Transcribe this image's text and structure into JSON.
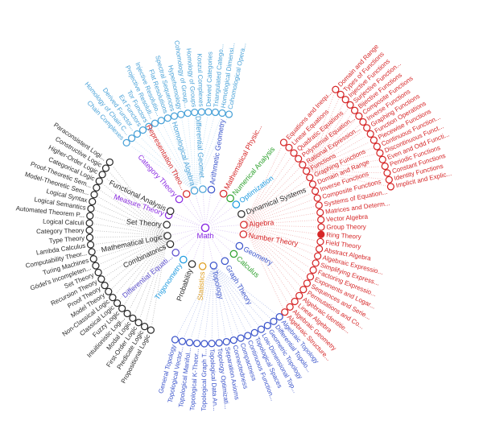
{
  "chart_data": {
    "type": "radial_tree",
    "center": {
      "label": "Math",
      "color": "purple"
    },
    "palette": {
      "purple": "#8a2be2",
      "lavender": "#d8c3f2",
      "red": "#d62728",
      "redLight": "#f2b7b7",
      "black": "#2b2b2b",
      "gray": "#bdbdbd",
      "green": "#2ca02c",
      "orange": "#df9e1f",
      "royal": "#3c55cb",
      "royalLight": "#bac6ec",
      "azure": "#1e9be0",
      "slate": "#5b4fce",
      "lightblue": "#4aa2d8",
      "lightblueLight": "#c4e1f5"
    },
    "radii": {
      "level1": 48,
      "level2": 144,
      "level3": 236
    },
    "branches": [
      {
        "label": "Algebra",
        "color": "red",
        "angle": -4.5,
        "children": {
          "edge": "redLight",
          "color": "red",
          "arc": [
            -47.4,
            46.7
          ],
          "items": [
            "Equations and Inequ...",
            "Linear Equations",
            "Quadratic Equations",
            "Polynomial Equation...",
            "Rational Expression...",
            {
              "label": "Functions",
              "children": {
                "edge": "redLight",
                "color": "red",
                "arc": [
                  -46.7,
                  -12.5
                ],
                "items": [
                  "Domain and Range",
                  "Types of Functions",
                  "Injective Functions",
                  "Surjective Function...",
                  "Bijective Functions",
                  "Composite Functions",
                  "Inverse Functions",
                  "Graphing Functions",
                  "Function Operations",
                  "Piecewise Functions",
                  "Continuous Function...",
                  "Discontinuous Funct...",
                  "Even and Odd Functi...",
                  "Periodic Functions",
                  "Constant Functions",
                  "Identity Functions",
                  "Implicit and Explic..."
                ]
              }
            },
            "Graphing Functions",
            "Domain and Range",
            "Inverse Functions",
            "Composite Functions",
            "Systems of Equation...",
            "Matrices and Determ...",
            "Vector Algebra",
            "Group Theory",
            {
              "label": "Ring Theory",
              "filled": true
            },
            "Field Theory",
            "Abstract Algebra",
            "Algebraic Expressio...",
            "Simplifying Express...",
            "Factoring Expressio...",
            "Exponents and Logar...",
            "Sequences and Serie...",
            "Permutations and Co...",
            "Algebraic Identitie...",
            "Linear Algebra",
            "Algebraic Geometry",
            "Algebraic Structure..."
          ]
        }
      },
      {
        "label": "Number Theory",
        "color": "red",
        "angle": 9.7
      },
      {
        "label": "Geometry",
        "color": "royal",
        "angle": 28
      },
      {
        "label": "Calculus",
        "color": "green",
        "angle": 42.5
      },
      {
        "label": "Graph Theory",
        "color": "royal",
        "angle": 59.5
      },
      {
        "label": "Topology",
        "color": "royal",
        "angle": 77.5,
        "children": {
          "edge": "royalLight",
          "color": "royal",
          "arc": [
            50.2,
            105.1
          ],
          "items": [
            "Algebraic Topology",
            "Differential Topolo...",
            "Geometric Topology",
            "Low-Dimensional Top...",
            "Topological Spaces",
            "Continuous Function...",
            "Compactness",
            "Connectedness",
            "Separation Axioms",
            "Topology Optimizati...",
            "Topological Data An...",
            "Topological Graph T...",
            "Topological K-Theor...",
            "Topological Manifol...",
            "Topological Vector...",
            "General Topology"
          ]
        }
      },
      {
        "label": "Statistics",
        "color": "orange",
        "angle": 94
      },
      {
        "label": "Probability",
        "color": "black",
        "angle": 110
      },
      {
        "label": "Trigonometry",
        "color": "azure",
        "angle": 124.5
      },
      {
        "label": "Differential Equati...",
        "color": "slate",
        "angle": 140
      },
      {
        "label": "Combinatorics",
        "color": "black",
        "angle": 155
      },
      {
        "label": "Mathematical Logic",
        "color": "black",
        "angle": 168,
        "children": {
          "edge": "gray",
          "color": "black",
          "arc": [
            214.5,
            118
          ],
          "items": [
            "Paraconsistent Logi...",
            "Constructive Logic",
            "Higher-Order Logic",
            "Categorical Logic",
            "Proof-Theoretic Sem...",
            "Model-Theoretic Sem...",
            "Logical Syntax",
            "Logical Semantics",
            "Automated Theorem P...",
            "Logical Calculi",
            "Category Theory",
            "Type Theory",
            "Lambda Calculus",
            "Computability Theor...",
            "Turing Machines",
            "Gödel's Incompleten...",
            "Set Theory",
            "Recursion Theory",
            "Proof Theory",
            "Model Theory",
            "Non-Classical Logic",
            "Classical Logic",
            "Fuzzy Logic",
            "Intuitionistic Logi...",
            "Modal Logic",
            "First-Order Logic",
            "Predicate Logic",
            "Propositional Logic"
          ]
        }
      },
      {
        "label": "Set Theory",
        "color": "black",
        "angle": 184.5
      },
      {
        "label": "Measure Theory",
        "color": "purple",
        "angle": 199
      },
      {
        "label": "Functional Analysis",
        "color": "black",
        "angle": 205.5
      },
      {
        "label": "Category Theory",
        "color": "purple",
        "angle": 227.5
      },
      {
        "label": "Representation Theo...",
        "color": "red",
        "angle": 241
      },
      {
        "label": "Homological Algebra",
        "color": "lightblue",
        "angle": 253.7,
        "children": {
          "edge": "lightblueLight",
          "color": "lightblue",
          "arc": [
            227.2,
            281.8
          ],
          "items": [
            "Chain Complexes",
            "Homology of Chain C...",
            "Derived Functor...",
            "Ext Functors",
            "Tor Functors",
            "Projective Resoluti...",
            "Injective Resolutio...",
            "Flat Resolutions",
            "Spectral Sequences",
            "Hyperhomology",
            "Cohomology of Group...",
            "Homology of Groups",
            "Koszul Complexes",
            "Derived Categories",
            "Triangulated Catego...",
            "Homological Dimensi...",
            "Cohomological Opera..."
          ]
        }
      },
      {
        "label": "Differential Geomet...",
        "color": "lightblue",
        "angle": 266.3
      },
      {
        "label": "Arithmetic Geometry",
        "color": "royal",
        "angle": 279
      },
      {
        "label": "Mathematical Physic...",
        "color": "red",
        "angle": 298.1
      },
      {
        "label": "Numerical Analysis",
        "color": "green",
        "angle": 310.4
      },
      {
        "label": "Optimization",
        "color": "azure",
        "angle": 323
      },
      {
        "label": "Dynamical Systems",
        "color": "black",
        "angle": 339.2
      }
    ]
  }
}
